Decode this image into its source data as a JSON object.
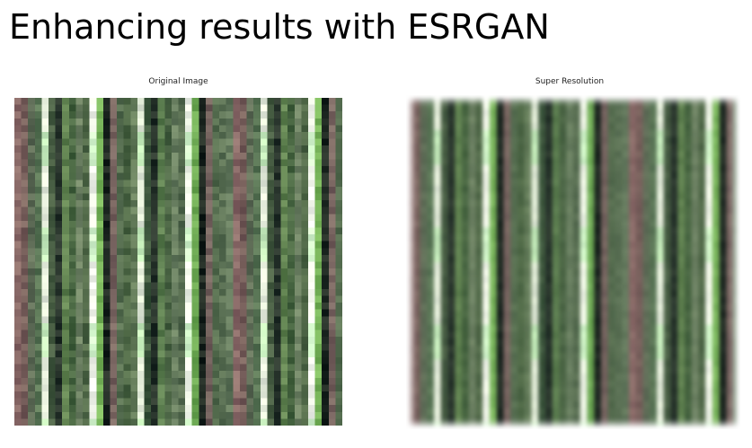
{
  "slide": {
    "title": "Enhancing results with ESRGAN"
  },
  "left_panel": {
    "caption": "Original Image"
  },
  "right_panel": {
    "caption": "Super Resolution"
  },
  "colors": {
    "background": "#ffffff",
    "stripe_brown": "#8a6a68",
    "stripe_green": "#5c7a52",
    "stripe_dark": "#1e2a22",
    "stripe_white": "#f4f8ee",
    "stripe_lime": "#8fcf6a"
  }
}
